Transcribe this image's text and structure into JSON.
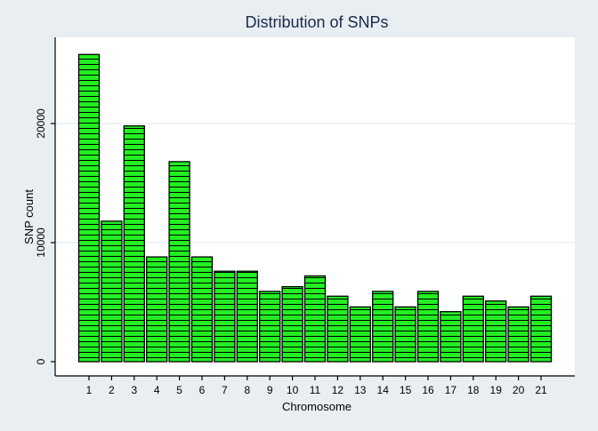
{
  "chart_data": {
    "type": "bar",
    "title": "Distribution of SNPs",
    "xlabel": "Chromosome",
    "ylabel": "SNP count",
    "categories": [
      "1",
      "2",
      "3",
      "4",
      "5",
      "6",
      "7",
      "8",
      "9",
      "10",
      "11",
      "12",
      "13",
      "14",
      "15",
      "16",
      "17",
      "18",
      "19",
      "20",
      "21"
    ],
    "values": [
      25800,
      11800,
      19800,
      8800,
      16800,
      8800,
      7600,
      7600,
      5900,
      6300,
      7200,
      5500,
      4600,
      5900,
      4600,
      5900,
      4200,
      5500,
      5100,
      4600,
      5500
    ],
    "ylim": [
      0,
      27000
    ],
    "yticks": [
      0,
      10000,
      20000
    ],
    "ytick_labels": [
      "0",
      "10000",
      "20000"
    ],
    "grid": true,
    "legend": "none",
    "bar_fill": "#22ee22",
    "bar_stroke": "#000000",
    "bar_pattern": "horizontal-stripes",
    "background": "#e8eef2",
    "plot_background": "#ffffff",
    "title_color": "#1a2a4a"
  }
}
